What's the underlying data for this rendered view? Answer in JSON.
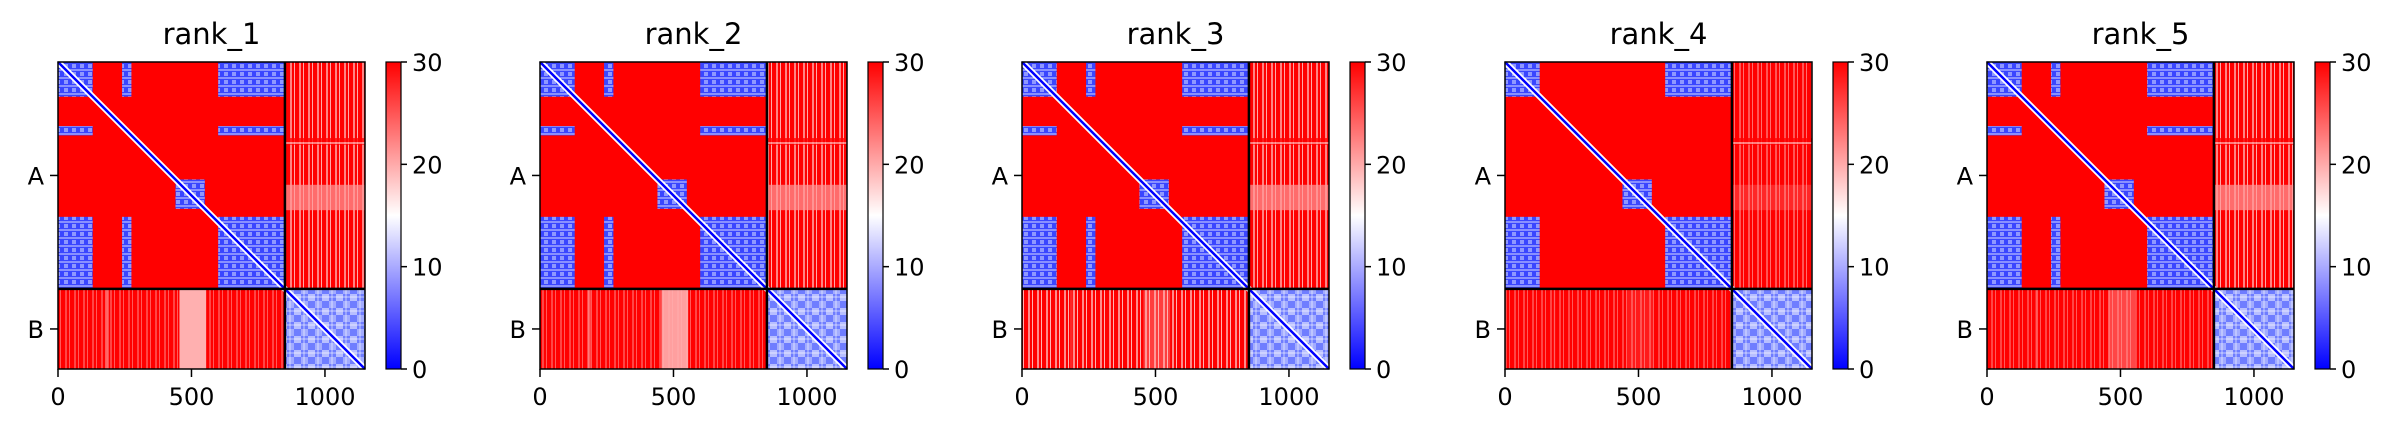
{
  "chart_data": [
    {
      "type": "heatmap",
      "title": "rank_1",
      "colorbar": {
        "min": 0,
        "max": 30,
        "ticks": [
          0,
          10,
          20,
          30
        ],
        "colors": [
          "#0000ff",
          "#ffffff",
          "#ff0000"
        ]
      },
      "x_ticks": [
        0,
        500,
        1000
      ],
      "xlim": [
        0,
        1150
      ],
      "segments": [
        {
          "name": "A",
          "start": 0,
          "end": 850
        },
        {
          "name": "B",
          "start": 850,
          "end": 1150
        }
      ]
    },
    {
      "type": "heatmap",
      "title": "rank_2",
      "colorbar": {
        "min": 0,
        "max": 30,
        "ticks": [
          0,
          10,
          20,
          30
        ],
        "colors": [
          "#0000ff",
          "#ffffff",
          "#ff0000"
        ]
      },
      "x_ticks": [
        0,
        500,
        1000
      ],
      "xlim": [
        0,
        1150
      ],
      "segments": [
        {
          "name": "A",
          "start": 0,
          "end": 850
        },
        {
          "name": "B",
          "start": 850,
          "end": 1150
        }
      ]
    },
    {
      "type": "heatmap",
      "title": "rank_3",
      "colorbar": {
        "min": 0,
        "max": 30,
        "ticks": [
          0,
          10,
          20,
          30
        ],
        "colors": [
          "#0000ff",
          "#ffffff",
          "#ff0000"
        ]
      },
      "x_ticks": [
        0,
        500,
        1000
      ],
      "xlim": [
        0,
        1150
      ],
      "segments": [
        {
          "name": "A",
          "start": 0,
          "end": 850
        },
        {
          "name": "B",
          "start": 850,
          "end": 1150
        }
      ]
    },
    {
      "type": "heatmap",
      "title": "rank_4",
      "colorbar": {
        "min": 0,
        "max": 30,
        "ticks": [
          0,
          10,
          20,
          30
        ],
        "colors": [
          "#0000ff",
          "#ffffff",
          "#ff0000"
        ]
      },
      "x_ticks": [
        0,
        500,
        1000
      ],
      "xlim": [
        0,
        1150
      ],
      "segments": [
        {
          "name": "A",
          "start": 0,
          "end": 850
        },
        {
          "name": "B",
          "start": 850,
          "end": 1150
        }
      ]
    },
    {
      "type": "heatmap",
      "title": "rank_5",
      "colorbar": {
        "min": 0,
        "max": 30,
        "ticks": [
          0,
          10,
          20,
          30
        ],
        "colors": [
          "#0000ff",
          "#ffffff",
          "#ff0000"
        ]
      },
      "x_ticks": [
        0,
        500,
        1000
      ],
      "xlim": [
        0,
        1150
      ],
      "segments": [
        {
          "name": "A",
          "start": 0,
          "end": 850
        },
        {
          "name": "B",
          "start": 850,
          "end": 1150
        }
      ]
    }
  ]
}
